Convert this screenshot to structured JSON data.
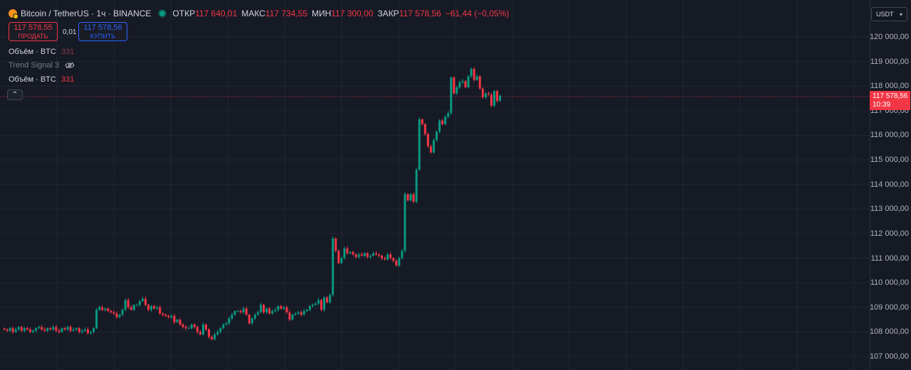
{
  "header": {
    "symbol_title": "Bitcoin / TetherUS · 1ч · BINANCE",
    "ohlc": [
      {
        "key": "ОТКР",
        "value": "117 640,01"
      },
      {
        "key": "МАКС",
        "value": "117 734,55"
      },
      {
        "key": "МИН",
        "value": "117 300,00"
      },
      {
        "key": "ЗАКР",
        "value": "117 578,56"
      }
    ],
    "change": "−61,44 (−0,05%)"
  },
  "trade": {
    "sell_price": "117 578,55",
    "sell_label": "ПРОДАТЬ",
    "spread": "0,01",
    "buy_price": "117 578,56",
    "buy_label": "КУПИТЬ"
  },
  "indicators": [
    {
      "name": "Объём · BTC",
      "value": "331"
    },
    {
      "name": "Trend Signal 3",
      "value": ""
    },
    {
      "name": "Объём · BTC",
      "value": "331"
    }
  ],
  "currency": {
    "selected": "USDT"
  },
  "price_tag": {
    "price": "117 578,56",
    "countdown": "10:39"
  },
  "colors": {
    "up": "#089981",
    "down": "#f23645",
    "background": "#161a25",
    "grid": "#232632"
  },
  "icons": {
    "symbol": "bitcoin-icon",
    "status": "market-open-dot-icon",
    "visibility": "eye-off-icon",
    "collapse": "chevron-up-icon",
    "dropdown": "chevron-down-icon"
  },
  "chart_data": {
    "type": "candlestick",
    "y_ticks": [
      "120 000,00",
      "119 000,00",
      "118 000,00",
      "117 000,00",
      "116 000,00",
      "115 000,00",
      "114 000,00",
      "113 000,00",
      "112 000,00",
      "111 000,00",
      "110 000,00",
      "109 000,00",
      "108 000,00",
      "107 000,00"
    ],
    "y_tick_values": [
      120000,
      119000,
      118000,
      117000,
      116000,
      115000,
      114000,
      113000,
      112000,
      111000,
      110000,
      109000,
      108000,
      107000
    ],
    "ylim": [
      106500,
      120600
    ],
    "last_price": 117578.56,
    "grid": true,
    "close_series": [
      108100,
      108050,
      108150,
      108000,
      108100,
      108200,
      108050,
      108150,
      108100,
      108000,
      108050,
      108150,
      108200,
      108100,
      108050,
      108150,
      108100,
      108200,
      108050,
      108000,
      108150,
      108100,
      108200,
      108050,
      108100,
      108150,
      108000,
      108050,
      108100,
      107950,
      108000,
      108150,
      108900,
      109000,
      108900,
      108950,
      108850,
      108800,
      108750,
      108600,
      108700,
      108900,
      109300,
      109000,
      108900,
      109100,
      109100,
      109250,
      109350,
      109100,
      108900,
      109050,
      108950,
      109000,
      108750,
      108700,
      108650,
      108600,
      108650,
      108400,
      108500,
      108300,
      108200,
      108150,
      108150,
      108300,
      108200,
      108000,
      107900,
      108300,
      108100,
      107800,
      107700,
      107900,
      108000,
      108150,
      108300,
      108350,
      108550,
      108700,
      108850,
      108850,
      108800,
      108950,
      108700,
      108350,
      108550,
      108700,
      108800,
      109100,
      108800,
      108950,
      108750,
      108850,
      108900,
      109050,
      108950,
      109000,
      108800,
      108500,
      108700,
      108750,
      108800,
      108700,
      108850,
      108900,
      109050,
      109100,
      109150,
      109300,
      108900,
      109400,
      109200,
      109500,
      111800,
      111300,
      110800,
      111000,
      111400,
      111200,
      111250,
      111150,
      111050,
      111150,
      111100,
      111200,
      111050,
      111100,
      111200,
      111150,
      111100,
      111000,
      110950,
      111150,
      111000,
      110900,
      110700,
      111000,
      111300,
      113600,
      113350,
      113600,
      113300,
      114600,
      116650,
      116450,
      116050,
      115550,
      115300,
      115800,
      116150,
      116600,
      116450,
      116750,
      116900,
      118350,
      117700,
      117950,
      118150,
      118200,
      117950,
      118400,
      118700,
      118250,
      118400,
      117900,
      117550,
      117700,
      117650,
      117200,
      117800,
      117400,
      117600
    ]
  }
}
